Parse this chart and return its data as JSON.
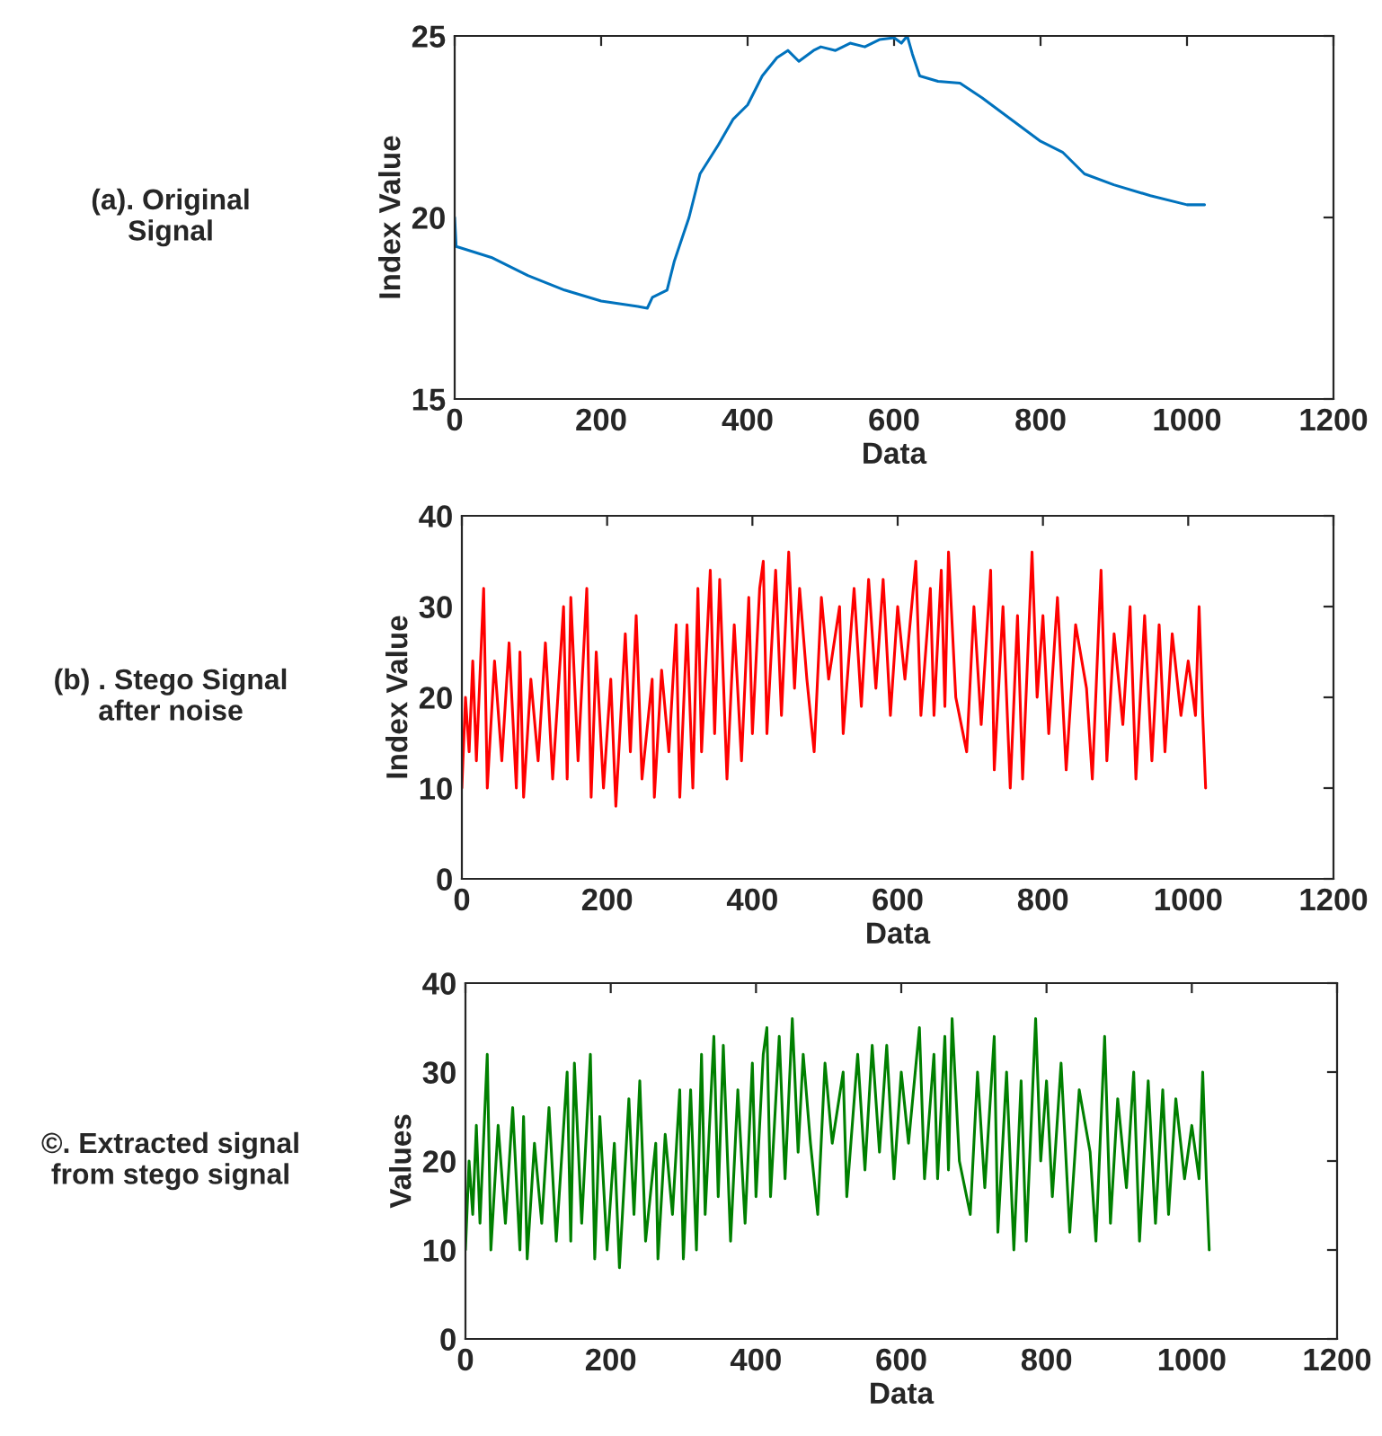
{
  "chart_data": [
    {
      "type": "line",
      "xlabel": "Data",
      "ylabel": "Index Value",
      "annotations": [
        "(a). Original\nSignal"
      ],
      "xlim": [
        0,
        1200
      ],
      "xticks": [
        0,
        200,
        400,
        600,
        800,
        1000,
        1200
      ],
      "ylim": [
        15,
        25
      ],
      "yticks": [
        15,
        20,
        25
      ],
      "grid": false,
      "series": [
        {
          "color": "#0072bd",
          "x": [
            0,
            2,
            50,
            100,
            150,
            200,
            250,
            263,
            270,
            290,
            300,
            320,
            335,
            360,
            380,
            400,
            420,
            440,
            455,
            470,
            490,
            500,
            520,
            540,
            560,
            580,
            600,
            610,
            618,
            625,
            635,
            660,
            690,
            720,
            760,
            800,
            830,
            860,
            900,
            950,
            1000,
            1024
          ],
          "values": [
            20.0,
            19.2,
            18.9,
            18.4,
            18.0,
            17.7,
            17.55,
            17.5,
            17.8,
            18.0,
            18.8,
            20.0,
            21.2,
            22.0,
            22.7,
            23.1,
            23.9,
            24.4,
            24.6,
            24.3,
            24.6,
            24.7,
            24.6,
            24.8,
            24.7,
            24.9,
            24.95,
            24.8,
            25.0,
            24.5,
            23.9,
            23.75,
            23.7,
            23.3,
            22.7,
            22.1,
            21.8,
            21.2,
            20.9,
            20.6,
            20.35,
            20.35
          ]
        }
      ]
    },
    {
      "type": "line",
      "xlabel": "Data",
      "ylabel": "Index Value",
      "annotations": [
        "(b) . Stego Signal\nafter noise"
      ],
      "xlim": [
        0,
        1200
      ],
      "xticks": [
        0,
        200,
        400,
        600,
        800,
        1000,
        1200
      ],
      "ylim": [
        0,
        40
      ],
      "yticks": [
        0,
        10,
        20,
        30,
        40
      ],
      "grid": false,
      "series": [
        {
          "color": "#ff0000",
          "x": [
            0,
            5,
            10,
            15,
            20,
            30,
            35,
            45,
            55,
            65,
            75,
            80,
            85,
            95,
            105,
            115,
            125,
            140,
            145,
            150,
            160,
            172,
            178,
            185,
            195,
            205,
            212,
            225,
            232,
            240,
            248,
            262,
            265,
            275,
            285,
            295,
            300,
            310,
            318,
            325,
            330,
            342,
            348,
            355,
            365,
            375,
            385,
            395,
            400,
            410,
            415,
            420,
            432,
            440,
            450,
            458,
            465,
            475,
            485,
            495,
            505,
            520,
            525,
            540,
            550,
            560,
            570,
            580,
            590,
            600,
            610,
            625,
            632,
            645,
            650,
            660,
            665,
            670,
            680,
            695,
            705,
            715,
            728,
            733,
            745,
            755,
            765,
            772,
            785,
            792,
            800,
            808,
            820,
            832,
            845,
            860,
            868,
            880,
            888,
            898,
            910,
            920,
            928,
            940,
            950,
            960,
            968,
            978,
            990,
            1000,
            1010,
            1015,
            1020,
            1024
          ],
          "values": [
            10,
            20,
            14,
            24,
            13,
            32,
            10,
            24,
            13,
            26,
            10,
            25,
            9,
            22,
            13,
            26,
            11,
            30,
            11,
            31,
            13,
            32,
            9,
            25,
            10,
            22,
            8,
            27,
            14,
            29,
            11,
            22,
            9,
            23,
            14,
            28,
            9,
            28,
            10,
            32,
            14,
            34,
            16,
            33,
            11,
            28,
            13,
            31,
            16,
            32,
            35,
            16,
            34,
            18,
            36,
            21,
            32,
            22,
            14,
            31,
            22,
            30,
            16,
            32,
            19,
            33,
            21,
            33,
            18,
            30,
            22,
            35,
            18,
            32,
            18,
            34,
            19,
            36,
            20,
            14,
            30,
            17,
            34,
            12,
            30,
            10,
            29,
            11,
            36,
            20,
            29,
            16,
            31,
            12,
            28,
            21,
            11,
            34,
            13,
            27,
            17,
            30,
            11,
            29,
            13,
            28,
            14,
            27,
            18,
            24,
            18,
            30,
            18,
            10
          ]
        }
      ]
    },
    {
      "type": "line",
      "xlabel": "Data",
      "ylabel": "Values",
      "annotations": [
        "©. Extracted signal\nfrom stego signal"
      ],
      "xlim": [
        0,
        1200
      ],
      "xticks": [
        0,
        200,
        400,
        600,
        800,
        1000,
        1200
      ],
      "ylim": [
        0,
        40
      ],
      "yticks": [
        0,
        10,
        20,
        30,
        40
      ],
      "grid": false,
      "series": [
        {
          "color": "#008000",
          "x": [
            0,
            5,
            10,
            15,
            20,
            30,
            35,
            45,
            55,
            65,
            75,
            80,
            85,
            95,
            105,
            115,
            125,
            140,
            145,
            150,
            160,
            172,
            178,
            185,
            195,
            205,
            212,
            225,
            232,
            240,
            248,
            262,
            265,
            275,
            285,
            295,
            300,
            310,
            318,
            325,
            330,
            342,
            348,
            355,
            365,
            375,
            385,
            395,
            400,
            410,
            415,
            420,
            432,
            440,
            450,
            458,
            465,
            475,
            485,
            495,
            505,
            520,
            525,
            540,
            550,
            560,
            570,
            580,
            590,
            600,
            610,
            625,
            632,
            645,
            650,
            660,
            665,
            670,
            680,
            695,
            705,
            715,
            728,
            733,
            745,
            755,
            765,
            772,
            785,
            792,
            800,
            808,
            820,
            832,
            845,
            860,
            868,
            880,
            888,
            898,
            910,
            920,
            928,
            940,
            950,
            960,
            968,
            978,
            990,
            1000,
            1010,
            1015,
            1020,
            1024
          ],
          "values": [
            10,
            20,
            14,
            24,
            13,
            32,
            10,
            24,
            13,
            26,
            10,
            25,
            9,
            22,
            13,
            26,
            11,
            30,
            11,
            31,
            13,
            32,
            9,
            25,
            10,
            22,
            8,
            27,
            14,
            29,
            11,
            22,
            9,
            23,
            14,
            28,
            9,
            28,
            10,
            32,
            14,
            34,
            16,
            33,
            11,
            28,
            13,
            31,
            16,
            32,
            35,
            16,
            34,
            18,
            36,
            21,
            32,
            22,
            14,
            31,
            22,
            30,
            16,
            32,
            19,
            33,
            21,
            33,
            18,
            30,
            22,
            35,
            18,
            32,
            18,
            34,
            19,
            36,
            20,
            14,
            30,
            17,
            34,
            12,
            30,
            10,
            29,
            11,
            36,
            20,
            29,
            16,
            31,
            12,
            28,
            21,
            11,
            34,
            13,
            27,
            17,
            30,
            11,
            29,
            13,
            28,
            14,
            27,
            18,
            24,
            18,
            30,
            18,
            10
          ]
        }
      ]
    }
  ]
}
